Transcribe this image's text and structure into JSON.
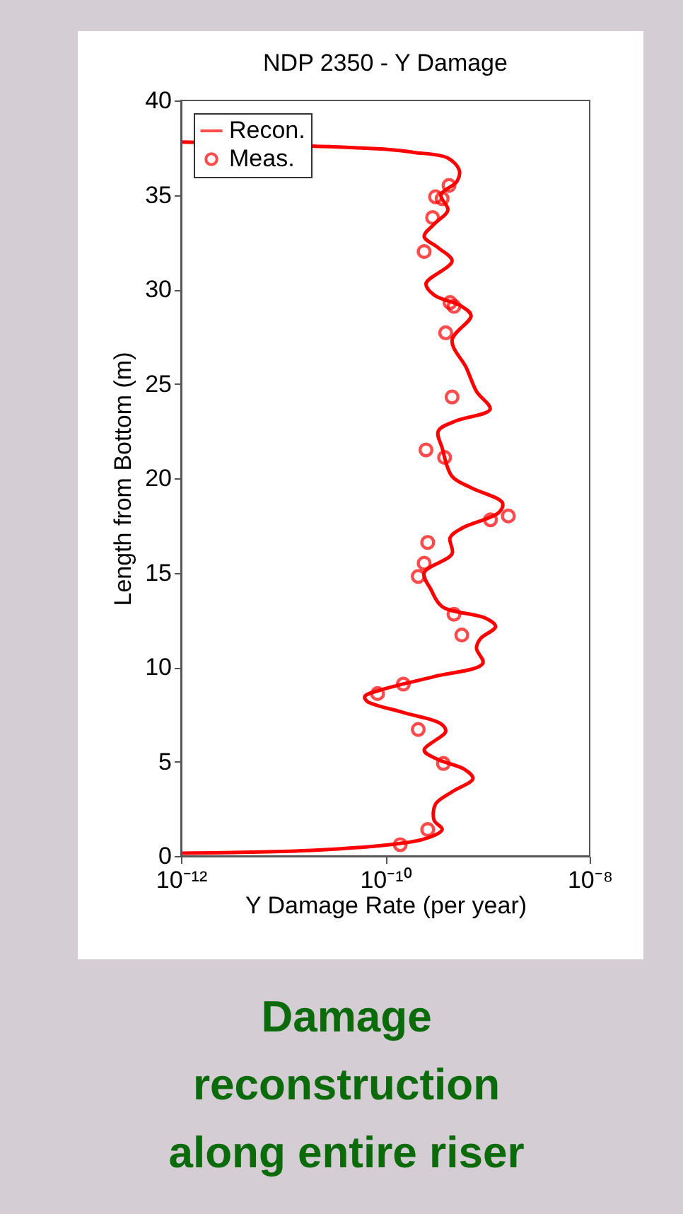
{
  "chart_data": {
    "type": "line",
    "title": "NDP 2350 -  Y Damage",
    "xlabel": "Y Damage Rate (per year)",
    "ylabel": "Length from Bottom (m)",
    "log": "x",
    "xlim": [
      1e-12,
      1e-08
    ],
    "xticks": [
      {
        "value": 1e-12,
        "label": "10⁻¹²"
      },
      {
        "value": 1e-10,
        "label": "10⁻¹⁰"
      },
      {
        "value": 1e-08,
        "label": "10⁻⁸"
      }
    ],
    "ylim": [
      0,
      40
    ],
    "yticks": [
      0,
      5,
      10,
      15,
      20,
      25,
      30,
      35,
      40
    ],
    "grid": false,
    "legend": "top left",
    "series": [
      {
        "name": "Recon.",
        "type": "line",
        "color": "#ff0000",
        "line_style": "solid",
        "marker": "none",
        "x": [
          1e-12,
          1.9e-11,
          1.1e-10,
          2.4e-10,
          3.6e-10,
          3e-10,
          3.1e-10,
          4.5e-10,
          7.2e-10,
          5.9e-10,
          3.3e-10,
          2.4e-10,
          3.9e-10,
          3.5e-10,
          1.5e-10,
          6.6e-11,
          6.3e-11,
          9.1e-11,
          3e-10,
          9e-10,
          7.8e-10,
          8.5e-10,
          1.2e-09,
          9.5e-10,
          3.6e-10,
          2.8e-10,
          2.4e-10,
          4.5e-10,
          4.3e-10,
          5.6e-10,
          1.3e-09,
          1.4e-09,
          6.9e-10,
          4.5e-10,
          3.6e-10,
          3.3e-10,
          5e-10,
          1.06e-09,
          7.8e-10,
          6.2e-10,
          4.5e-10,
          6.9e-10,
          5.6e-10,
          3e-10,
          2.5e-10,
          4.5e-10,
          3.3e-10,
          2.4e-10,
          3e-10,
          4.1e-10,
          3.5e-10,
          5e-10,
          5.3e-10,
          4.1e-10,
          1.9e-10,
          1.1e-10,
          1e-12
        ],
        "values": [
          0.15,
          0.3,
          0.6,
          0.9,
          1.4,
          1.9,
          2.75,
          3.4,
          4.1,
          4.6,
          5.1,
          5.6,
          6.6,
          7.0,
          7.6,
          8.2,
          8.45,
          8.8,
          9.5,
          10.2,
          11.0,
          11.5,
          12.15,
          12.6,
          13.2,
          14.1,
          15.0,
          16.0,
          16.85,
          17.35,
          18.2,
          18.7,
          19.5,
          20.1,
          21.6,
          22.5,
          23.05,
          23.65,
          24.6,
          25.85,
          27.3,
          28.6,
          29.1,
          29.7,
          30.3,
          31.5,
          32.2,
          32.8,
          33.45,
          34.2,
          35.0,
          35.7,
          36.3,
          36.95,
          37.25,
          37.4,
          37.8
        ]
      },
      {
        "name": "Meas.",
        "type": "scatter",
        "color": "#ff0000",
        "marker": "circle",
        "x": [
          4.2e-10,
          3.1e-10,
          3.6e-10,
          2.9e-10,
          2.4e-10,
          4.3e-10,
          4.7e-10,
          3.9e-10,
          4.5e-10,
          2.5e-10,
          3.8e-10,
          1.07e-09,
          1.6e-09,
          2.6e-10,
          2.4e-10,
          2.1e-10,
          4.7e-10,
          5.6e-10,
          1.5e-10,
          8.4e-11,
          2.1e-10,
          3.7e-10,
          2.6e-10,
          1.4e-10
        ],
        "values": [
          35.5,
          34.9,
          34.8,
          33.8,
          32.0,
          29.3,
          29.1,
          27.7,
          24.3,
          21.5,
          21.1,
          17.8,
          18.0,
          16.6,
          15.5,
          14.8,
          12.8,
          11.7,
          9.1,
          8.6,
          6.7,
          4.9,
          1.4,
          0.6
        ]
      }
    ],
    "annotations": [
      "Damage reconstruction along entire riser"
    ]
  }
}
